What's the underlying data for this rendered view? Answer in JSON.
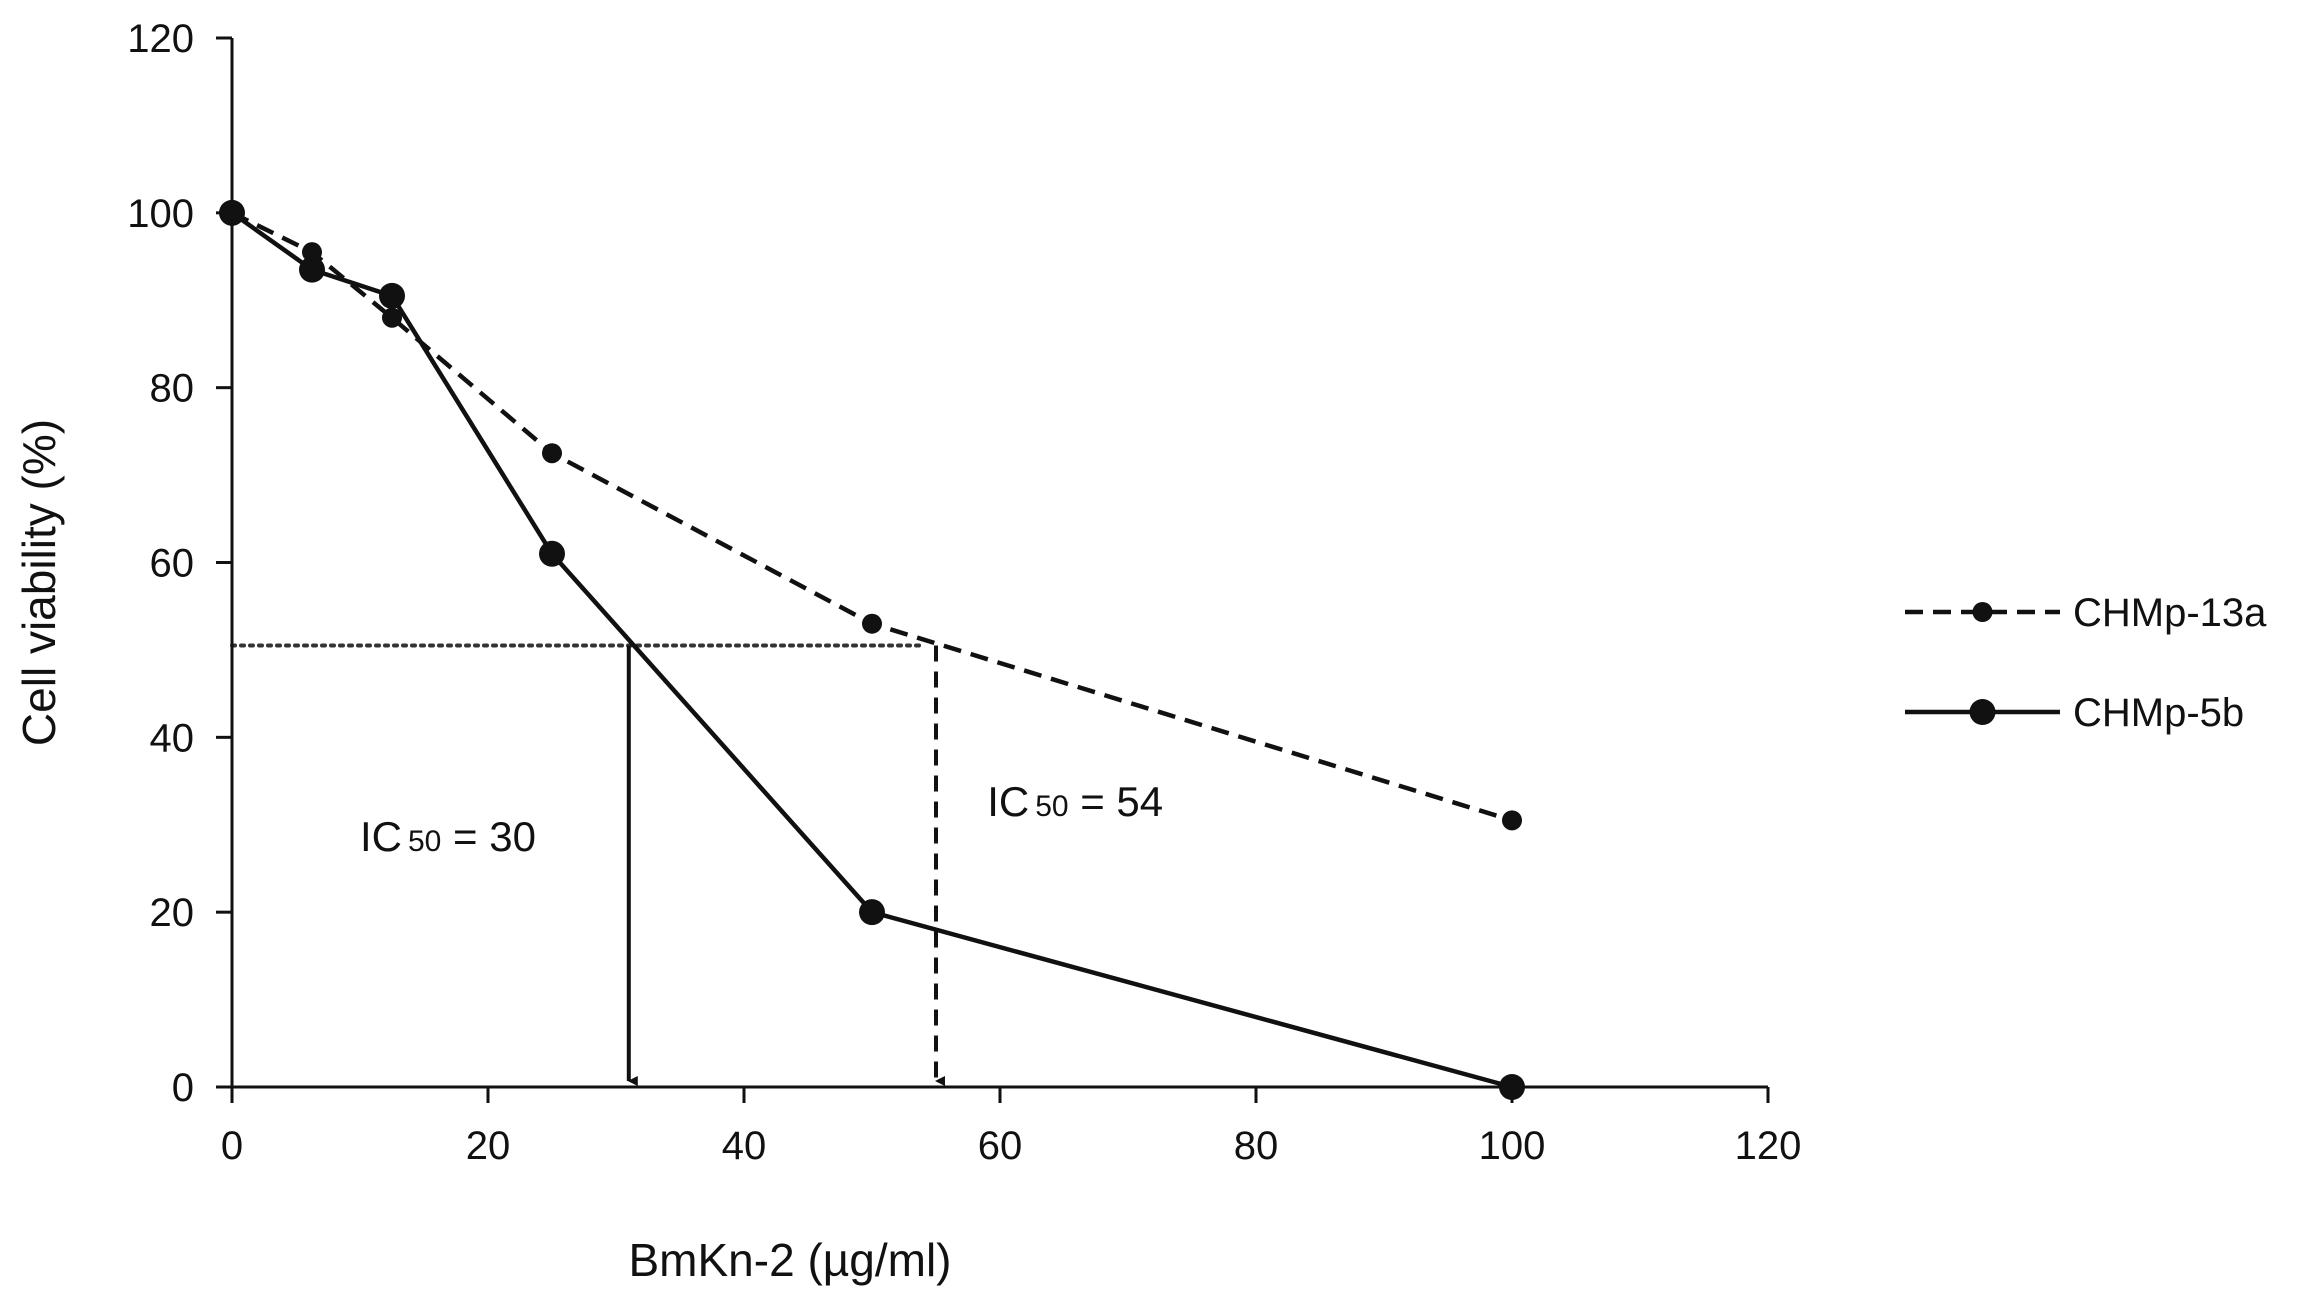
{
  "chart_data": {
    "type": "line",
    "title": "",
    "xlabel": "BmKn-2 (µg/ml)",
    "ylabel": "Cell viability (%)",
    "xlim": [
      0,
      120
    ],
    "ylim": [
      0,
      120
    ],
    "xticks": [
      0,
      20,
      40,
      60,
      80,
      100,
      120
    ],
    "yticks": [
      0,
      20,
      40,
      60,
      80,
      100,
      120
    ],
    "grid": false,
    "legend_position": "right",
    "series": [
      {
        "name": "CHMp-13a",
        "style": "dashed",
        "marker": "small-dot",
        "x": [
          0,
          6.25,
          12.5,
          25,
          50,
          100
        ],
        "y": [
          100,
          95.5,
          88,
          72.5,
          53,
          30.5
        ]
      },
      {
        "name": "CHMp-5b",
        "style": "solid",
        "marker": "large-dot",
        "x": [
          0,
          6.25,
          12.5,
          25,
          50,
          100
        ],
        "y": [
          100,
          93.5,
          90.5,
          61,
          20,
          0
        ]
      }
    ],
    "reference_line": {
      "y": 50.5,
      "x_from": 0,
      "x_to": 54,
      "style": "dotted"
    },
    "ic50": [
      {
        "series": "CHMp-5b",
        "prefix": "IC",
        "subscript": "50",
        "suffix": " = 30",
        "x": 31,
        "style": "solid",
        "label_x": 10,
        "label_y": 27
      },
      {
        "series": "CHMp-13a",
        "prefix": "IC",
        "subscript": "50",
        "suffix": " = 54",
        "x": 55,
        "style": "dashed",
        "label_x": 59,
        "label_y": 31
      }
    ],
    "colors": {
      "line": "#111111",
      "axis": "#111111",
      "reference": "#333333"
    }
  }
}
